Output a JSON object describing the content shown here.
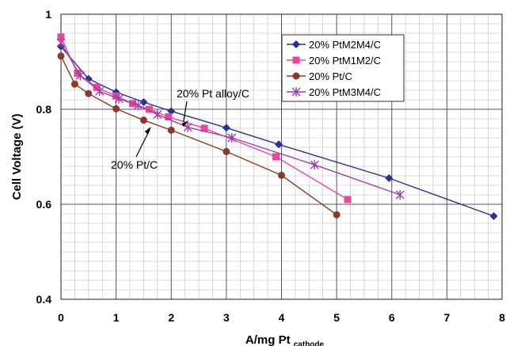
{
  "chart_data": {
    "type": "line",
    "title": "",
    "xlabel": "A/mg Pt",
    "xlabel_subscript": "cathode",
    "ylabel": "Cell Voltage (V)",
    "xlim": [
      0,
      8
    ],
    "ylim": [
      0.4,
      1.0
    ],
    "x_ticks": [
      "0",
      "1",
      "2",
      "3",
      "4",
      "5",
      "6",
      "7",
      "8"
    ],
    "y_ticks": [
      "0.4",
      "0.6",
      "0.8",
      "1"
    ],
    "grid": true,
    "legend_position": "top-right",
    "series": [
      {
        "name": "20% PtM2M4/C",
        "color": "#2b2f8f",
        "marker": "diamond",
        "x": [
          0.0,
          0.5,
          1.0,
          1.5,
          2.0,
          3.0,
          3.95,
          5.95,
          7.85
        ],
        "y": [
          0.932,
          0.864,
          0.836,
          0.815,
          0.796,
          0.761,
          0.726,
          0.655,
          0.575
        ]
      },
      {
        "name": "20% PtM1M2/C",
        "color": "#e8489a",
        "marker": "square",
        "x": [
          0.0,
          0.3,
          0.65,
          1.0,
          1.3,
          1.6,
          1.95,
          2.6,
          3.9,
          5.2
        ],
        "y": [
          0.952,
          0.876,
          0.846,
          0.828,
          0.812,
          0.8,
          0.784,
          0.76,
          0.7,
          0.61
        ]
      },
      {
        "name": "20% Pt/C",
        "color": "#8b3a2a",
        "marker": "circle",
        "x": [
          0.0,
          0.25,
          0.5,
          1.0,
          1.5,
          2.0,
          3.0,
          4.0,
          5.0
        ],
        "y": [
          0.912,
          0.853,
          0.833,
          0.801,
          0.777,
          0.756,
          0.711,
          0.661,
          0.578
        ]
      },
      {
        "name": "20% PtM3M4/C",
        "color": "#9a3ea8",
        "marker": "asterisk",
        "x": [
          0.0,
          0.35,
          0.7,
          1.05,
          1.4,
          1.75,
          2.3,
          3.1,
          4.6,
          6.15
        ],
        "y": [
          0.94,
          0.871,
          0.838,
          0.822,
          0.808,
          0.789,
          0.762,
          0.74,
          0.683,
          0.62
        ]
      }
    ],
    "annotations": [
      {
        "text": "20% Pt alloy/C",
        "target_x": 2.25,
        "target_y": 0.78
      },
      {
        "text": "20% Pt/C",
        "target_x": 1.55,
        "target_y": 0.77
      }
    ]
  }
}
